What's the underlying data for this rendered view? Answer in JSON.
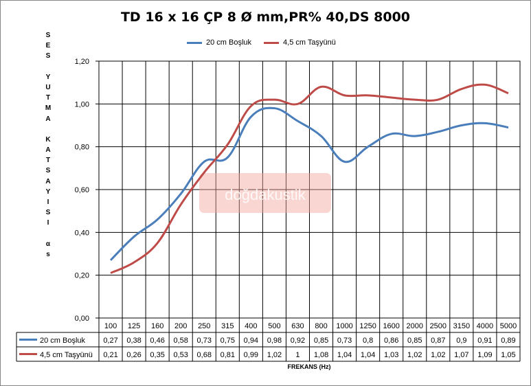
{
  "chart_data": {
    "type": "line",
    "title": "TD 16 x 16 ÇP 8 Ø mm,PR% 40,DS 8000",
    "xlabel": "FREKANS (Hz)",
    "ylabel": "SES YUTMA KATSAYISI αs",
    "ylim": [
      0,
      1.2
    ],
    "yticks": [
      "0,00",
      "0,20",
      "0,40",
      "0,60",
      "0,80",
      "1,00",
      "1,20"
    ],
    "grid": true,
    "legend_position": "top",
    "watermark": "doğdakustik",
    "categories": [
      "100",
      "125",
      "160",
      "200",
      "250",
      "315",
      "400",
      "500",
      "630",
      "800",
      "1000",
      "1250",
      "1600",
      "2000",
      "2500",
      "3150",
      "4000",
      "5000"
    ],
    "series": [
      {
        "name": "20 cm Boşluk",
        "color": "#4a7ebb",
        "values": [
          0.27,
          0.38,
          0.46,
          0.58,
          0.73,
          0.75,
          0.94,
          0.98,
          0.92,
          0.85,
          0.73,
          0.8,
          0.86,
          0.85,
          0.87,
          0.9,
          0.91,
          0.89
        ],
        "labels": [
          "0,27",
          "0,38",
          "0,46",
          "0,58",
          "0,73",
          "0,75",
          "0,94",
          "0,98",
          "0,92",
          "0,85",
          "0,73",
          "0,8",
          "0,86",
          "0,85",
          "0,87",
          "0,9",
          "0,91",
          "0,89"
        ]
      },
      {
        "name": "4,5 cm Taşyünü",
        "color": "#be4b48",
        "values": [
          0.21,
          0.26,
          0.35,
          0.53,
          0.68,
          0.81,
          0.99,
          1.02,
          1,
          1.08,
          1.04,
          1.04,
          1.03,
          1.02,
          1.02,
          1.07,
          1.09,
          1.05
        ],
        "labels": [
          "0,21",
          "0,26",
          "0,35",
          "0,53",
          "0,68",
          "0,81",
          "0,99",
          "1,02",
          "1",
          "1,08",
          "1,04",
          "1,04",
          "1,03",
          "1,02",
          "1,02",
          "1,07",
          "1,09",
          "1,05"
        ]
      }
    ]
  }
}
